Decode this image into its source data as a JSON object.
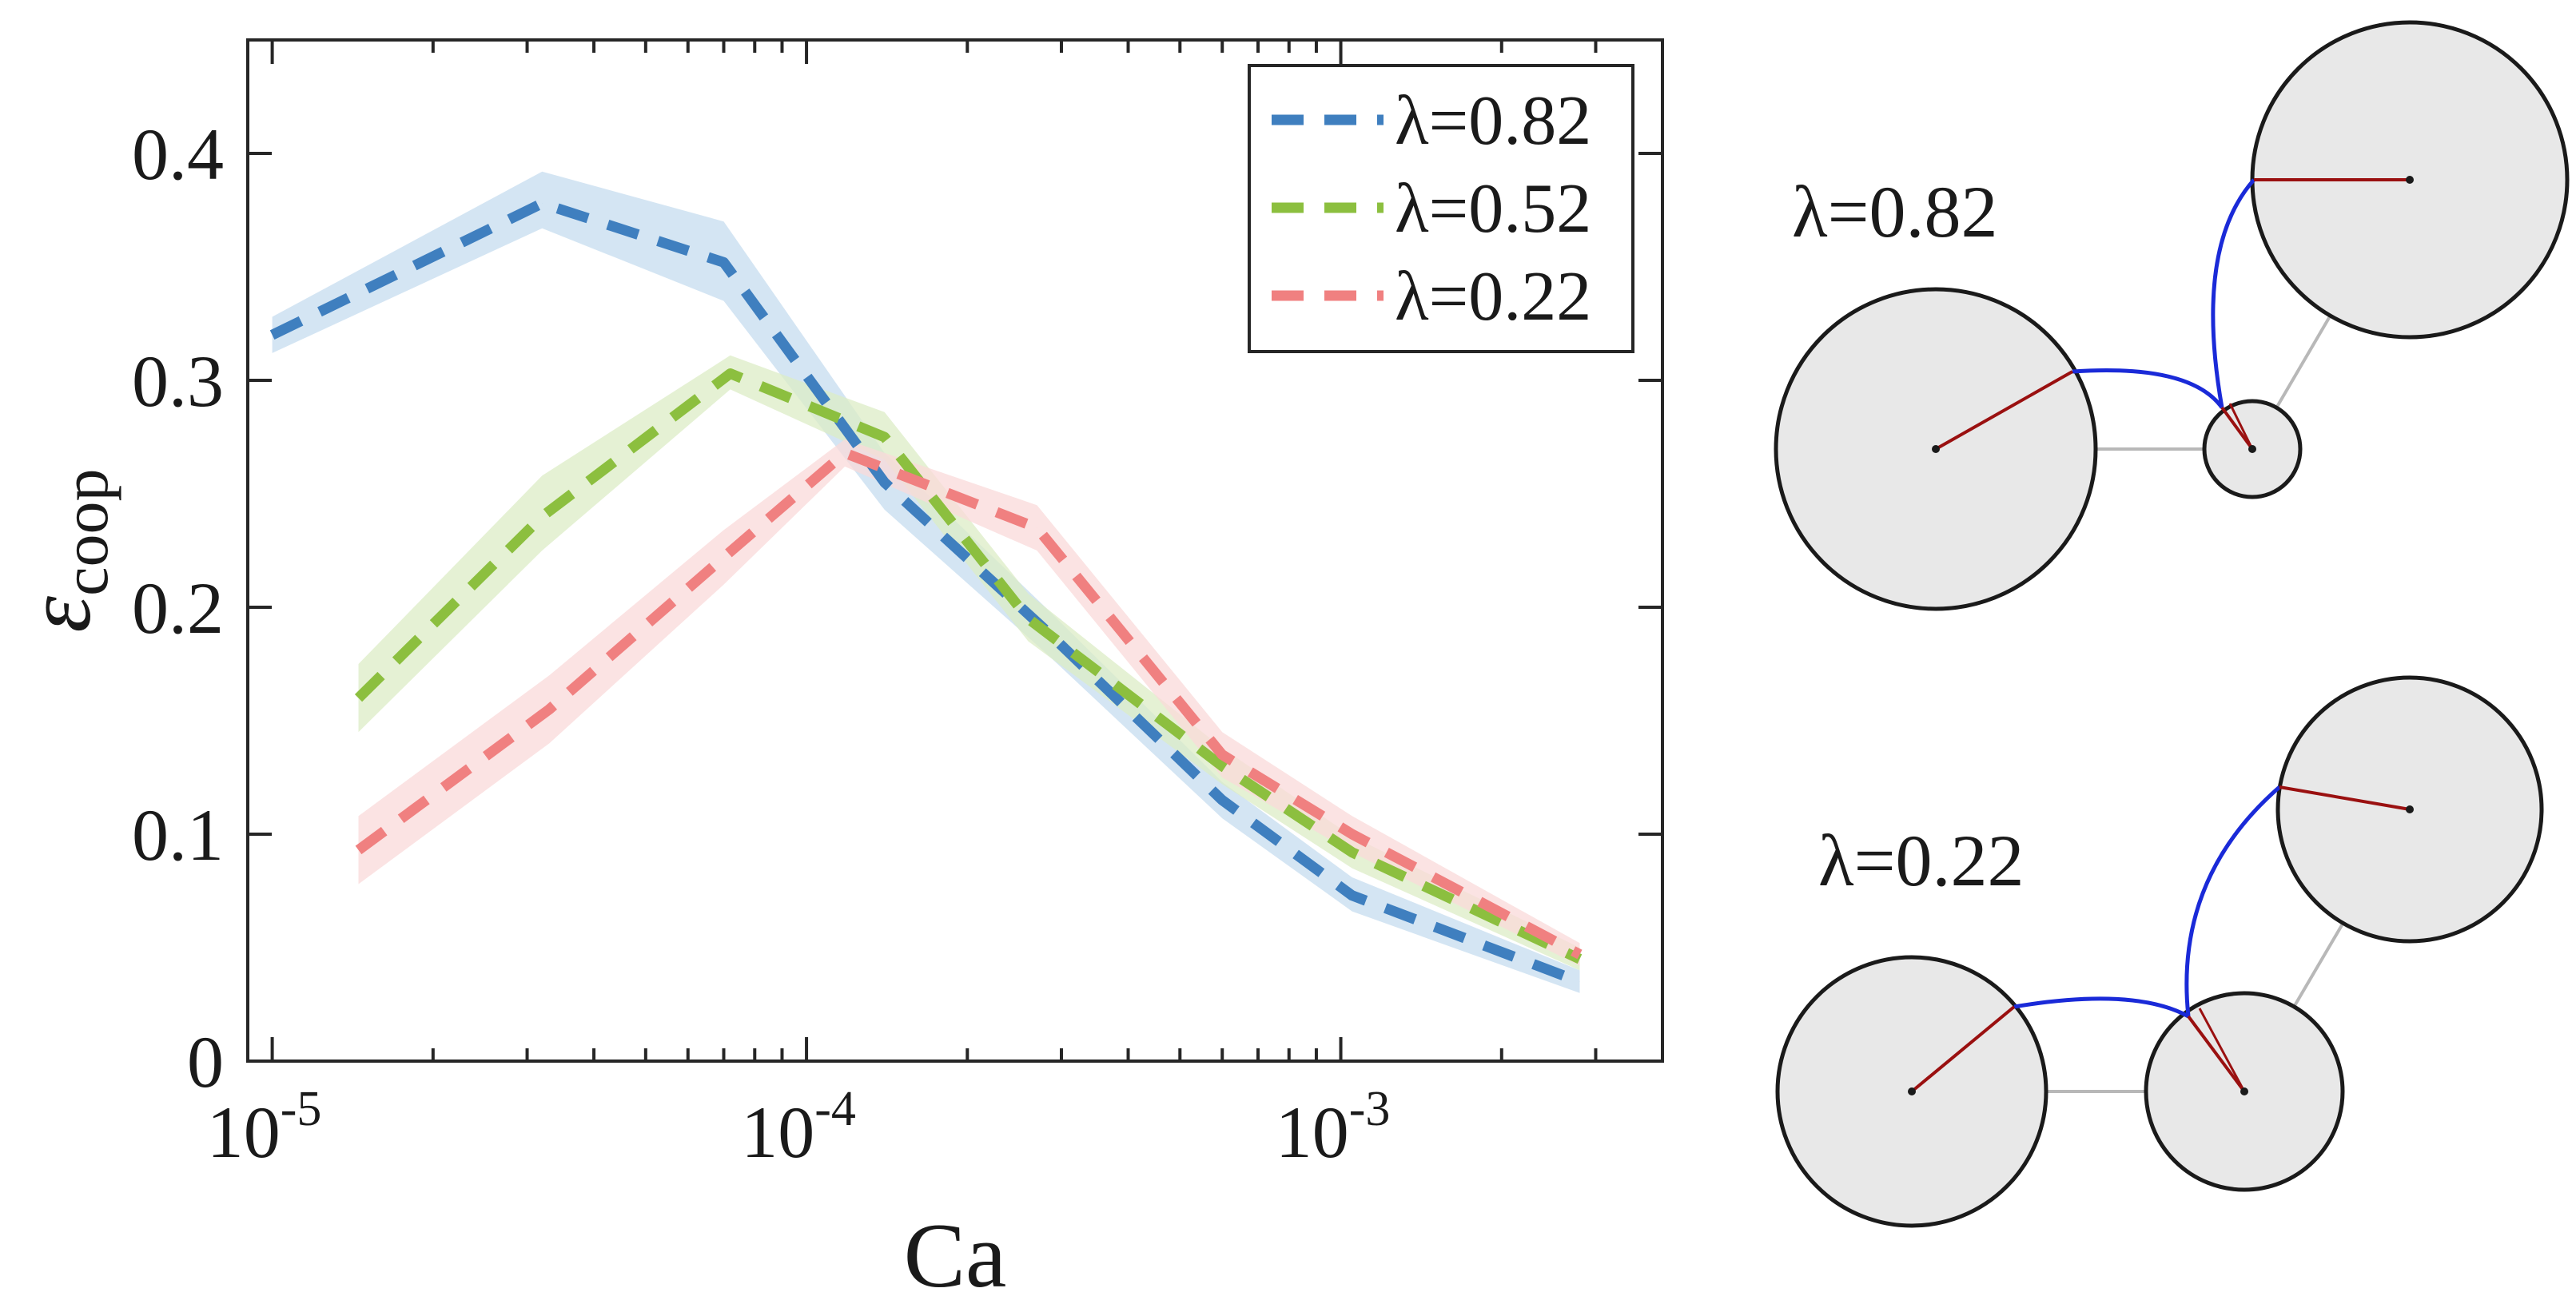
{
  "chart_data": {
    "type": "line",
    "xscale": "log",
    "xlim": [
      9e-06,
      0.004
    ],
    "ylim": [
      0,
      0.45
    ],
    "xlabel": "Ca",
    "ylabel_base": "ε",
    "ylabel_sub": "coop",
    "xticks": [
      {
        "value": 1e-05,
        "base": "10",
        "exp": "-5"
      },
      {
        "value": 0.0001,
        "base": "10",
        "exp": "-4"
      },
      {
        "value": 0.001,
        "base": "10",
        "exp": "-3"
      }
    ],
    "yticks": [
      {
        "value": 0,
        "label": "0"
      },
      {
        "value": 0.1,
        "label": "0.1"
      },
      {
        "value": 0.2,
        "label": "0.2"
      },
      {
        "value": 0.3,
        "label": "0.3"
      },
      {
        "value": 0.4,
        "label": "0.4"
      }
    ],
    "legend_position": "top-right",
    "series": [
      {
        "name": "λ=0.82",
        "color": "#3f7fbf",
        "band_color": "#c6dcef",
        "x": [
          1e-05,
          3.2e-05,
          7e-05,
          0.00014,
          0.00028,
          0.0006,
          0.00105,
          0.0028
        ],
        "y": [
          0.32,
          0.378,
          0.352,
          0.255,
          0.19,
          0.115,
          0.073,
          0.035
        ],
        "lower": [
          0.312,
          0.367,
          0.335,
          0.243,
          0.18,
          0.107,
          0.066,
          0.03
        ],
        "upper": [
          0.328,
          0.392,
          0.37,
          0.268,
          0.2,
          0.123,
          0.081,
          0.04
        ]
      },
      {
        "name": "λ=0.52",
        "color": "#8cbf3f",
        "band_color": "#dcecc6",
        "x": [
          1.45e-05,
          3.2e-05,
          7.2e-05,
          0.00014,
          0.00026,
          0.0006,
          0.00105,
          0.0028
        ],
        "y": [
          0.16,
          0.24,
          0.303,
          0.275,
          0.195,
          0.13,
          0.092,
          0.045
        ],
        "lower": [
          0.145,
          0.225,
          0.296,
          0.265,
          0.185,
          0.122,
          0.085,
          0.04
        ],
        "upper": [
          0.175,
          0.258,
          0.311,
          0.286,
          0.206,
          0.138,
          0.099,
          0.05
        ]
      },
      {
        "name": "λ=0.22",
        "color": "#f08080",
        "band_color": "#f9d9d9",
        "x": [
          1.45e-05,
          3.3e-05,
          7e-05,
          0.000118,
          0.00027,
          0.0006,
          0.00105,
          0.0028
        ],
        "y": [
          0.093,
          0.155,
          0.222,
          0.268,
          0.235,
          0.135,
          0.1,
          0.047
        ],
        "lower": [
          0.078,
          0.14,
          0.21,
          0.262,
          0.225,
          0.125,
          0.092,
          0.042
        ],
        "upper": [
          0.108,
          0.17,
          0.234,
          0.274,
          0.245,
          0.145,
          0.108,
          0.052
        ]
      }
    ]
  },
  "schematics": [
    {
      "label": "λ=0.82"
    },
    {
      "label": "λ=0.22"
    }
  ],
  "colors": {
    "particle_fill": "#e8e8e8",
    "particle_stroke": "#1a1a1a",
    "bond": "#b8b8b8",
    "radius": "#9a1010",
    "contact": "#1a2ad8"
  }
}
